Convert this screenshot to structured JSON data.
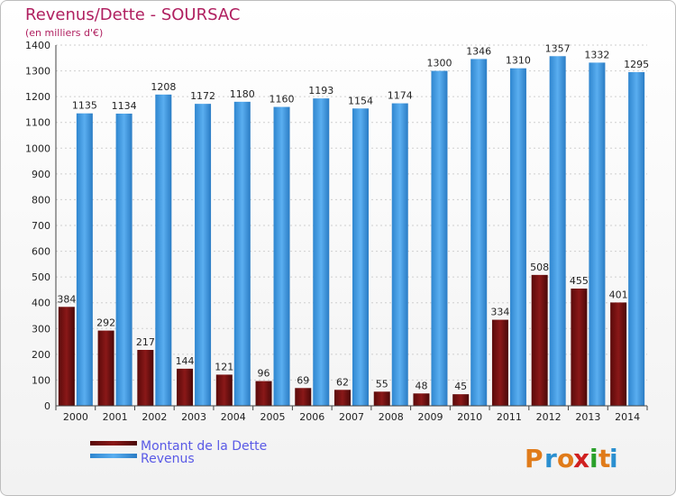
{
  "chart_data": {
    "type": "bar",
    "title": "Revenus/Dette - SOURSAC",
    "subtitle": "(en milliers d'€)",
    "categories": [
      "2000",
      "2001",
      "2002",
      "2003",
      "2004",
      "2005",
      "2006",
      "2007",
      "2008",
      "2009",
      "2010",
      "2011",
      "2012",
      "2013",
      "2014"
    ],
    "series": [
      {
        "name": "Montant de la Dette",
        "color": "#7a1010",
        "values": [
          384,
          292,
          217,
          144,
          121,
          96,
          69,
          62,
          55,
          48,
          45,
          334,
          508,
          455,
          401
        ]
      },
      {
        "name": "Revenus",
        "color": "#3a9ae0",
        "values": [
          1135,
          1134,
          1208,
          1172,
          1180,
          1160,
          1193,
          1154,
          1174,
          1300,
          1346,
          1310,
          1357,
          1332,
          1295
        ]
      }
    ],
    "ylim": [
      0,
      1400
    ],
    "yticks": [
      0,
      100,
      200,
      300,
      400,
      500,
      600,
      700,
      800,
      900,
      1000,
      1100,
      1200,
      1300,
      1400
    ],
    "grid": true,
    "legend": "bottom-left"
  },
  "branding": {
    "logo_letters": [
      "P",
      "r",
      "o",
      "x",
      "i",
      "t",
      "i"
    ],
    "logo_colors": [
      "#e07b1a",
      "#2a8fd0",
      "#e07b1a",
      "#d02020",
      "#2aa02a",
      "#e07b1a",
      "#2a8fd0"
    ]
  }
}
